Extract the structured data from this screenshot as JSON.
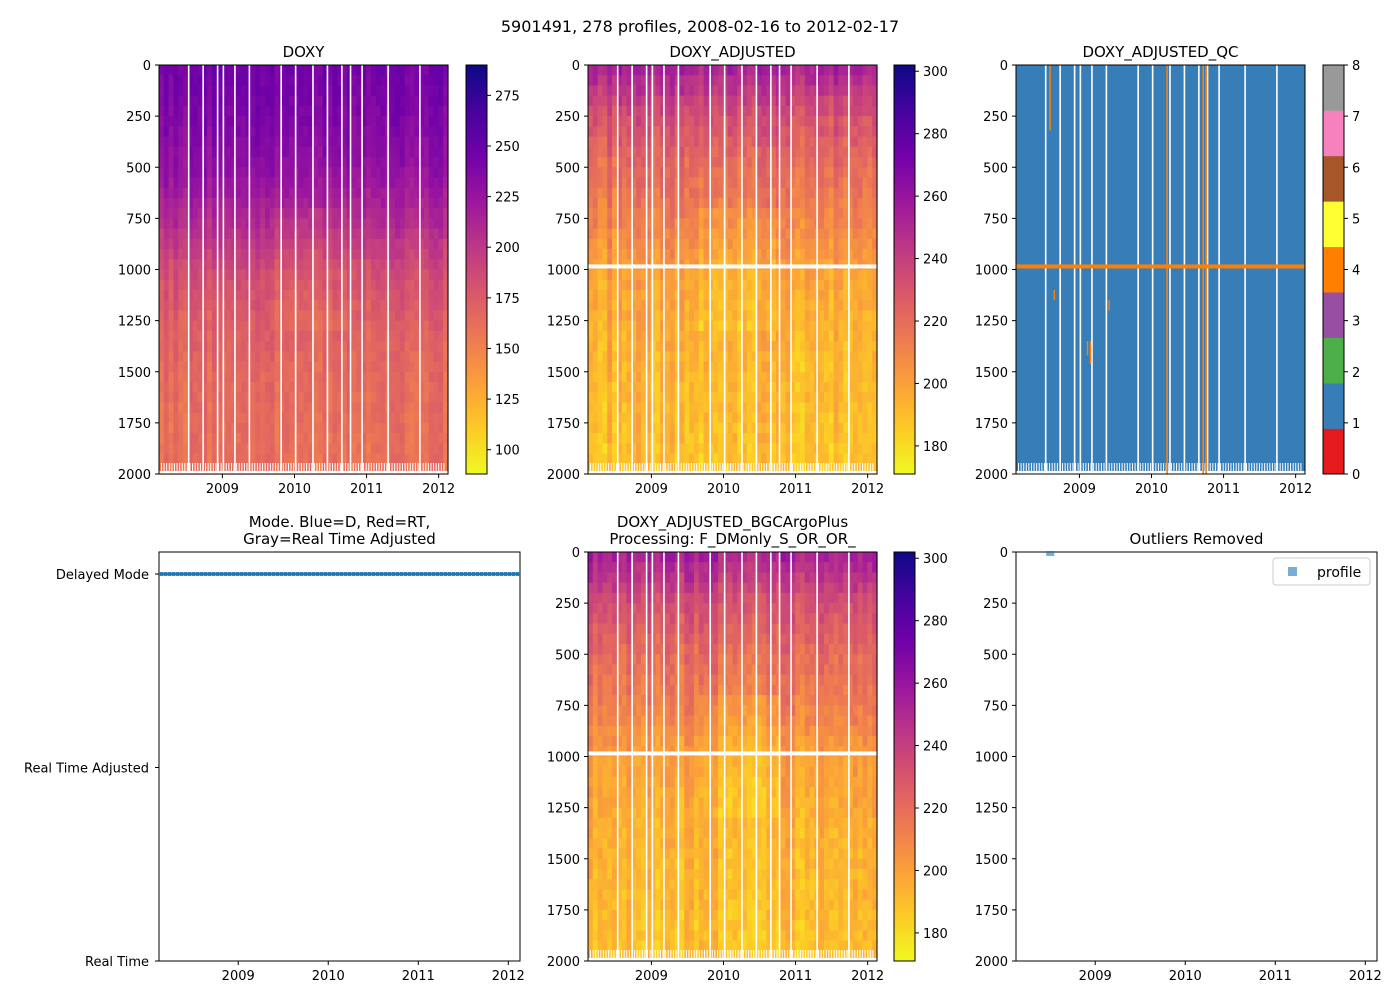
{
  "figure": {
    "suptitle": "5901491, 278 profiles, 2008-02-16 to 2012-02-17"
  },
  "colors": {
    "plasma_r": [
      "#f0f921",
      "#fdca26",
      "#fb9f3a",
      "#ed7953",
      "#d8576b",
      "#bd3786",
      "#9c179e",
      "#7201a8",
      "#46039f",
      "#0d0887"
    ],
    "qc": [
      "#e41a1c",
      "#377eb8",
      "#4daf4a",
      "#984ea3",
      "#ff7f00",
      "#ffff33",
      "#a65628",
      "#f781bf",
      "#999999"
    ],
    "mode_line": "#1f77b4",
    "outlier_marker": "#1f77b4"
  },
  "chart_data": [
    {
      "id": "doxy",
      "type": "heatmap",
      "title": "DOXY",
      "x_ticks": [
        "2009",
        "2010",
        "2011",
        "2012"
      ],
      "x_range": [
        2008.12,
        2012.13
      ],
      "y_ticks": [
        "0",
        "250",
        "500",
        "750",
        "1000",
        "1250",
        "1500",
        "1750",
        "2000"
      ],
      "ylim": [
        2000,
        0
      ],
      "colorbar": {
        "range": [
          88,
          290
        ],
        "ticks": [
          "100",
          "125",
          "150",
          "175",
          "200",
          "225",
          "250",
          "275"
        ],
        "tick_values": [
          100,
          125,
          150,
          175,
          200,
          225,
          250,
          275
        ],
        "cmap": "plasma_r"
      },
      "depth_profile": [
        {
          "depth": 0,
          "value": 245
        },
        {
          "depth": 250,
          "value": 238
        },
        {
          "depth": 500,
          "value": 228
        },
        {
          "depth": 750,
          "value": 210
        },
        {
          "depth": 1000,
          "value": 185
        },
        {
          "depth": 1250,
          "value": 172
        },
        {
          "depth": 1500,
          "value": 165
        },
        {
          "depth": 1750,
          "value": 162
        },
        {
          "depth": 2000,
          "value": 160
        }
      ],
      "qc_band": null
    },
    {
      "id": "doxy_adjusted",
      "type": "heatmap",
      "title": "DOXY_ADJUSTED",
      "x_ticks": [
        "2009",
        "2010",
        "2011",
        "2012"
      ],
      "x_range": [
        2008.12,
        2012.13
      ],
      "y_ticks": [
        "0",
        "250",
        "500",
        "750",
        "1000",
        "1250",
        "1500",
        "1750",
        "2000"
      ],
      "ylim": [
        2000,
        0
      ],
      "colorbar": {
        "range": [
          171,
          302
        ],
        "ticks": [
          "180",
          "200",
          "220",
          "240",
          "260",
          "280",
          "300"
        ],
        "tick_values": [
          180,
          200,
          220,
          240,
          260,
          280,
          300
        ],
        "cmap": "plasma_r"
      },
      "depth_profile": [
        {
          "depth": 0,
          "value": 255
        },
        {
          "depth": 250,
          "value": 232
        },
        {
          "depth": 500,
          "value": 220
        },
        {
          "depth": 750,
          "value": 212
        },
        {
          "depth": 1000,
          "value": 200
        },
        {
          "depth": 1250,
          "value": 195
        },
        {
          "depth": 1500,
          "value": 192
        },
        {
          "depth": 1750,
          "value": 190
        },
        {
          "depth": 2000,
          "value": 188
        }
      ],
      "gap_depth": 985
    },
    {
      "id": "doxy_adjusted_qc",
      "type": "heatmap",
      "title": "DOXY_ADJUSTED_QC",
      "x_ticks": [
        "2009",
        "2010",
        "2011",
        "2012"
      ],
      "x_range": [
        2008.12,
        2012.13
      ],
      "y_ticks": [
        "0",
        "250",
        "500",
        "750",
        "1000",
        "1250",
        "1500",
        "1750",
        "2000"
      ],
      "ylim": [
        2000,
        0
      ],
      "colorbar": {
        "range": [
          0,
          8
        ],
        "ticks": [
          "0",
          "1",
          "2",
          "3",
          "4",
          "5",
          "6",
          "7",
          "8"
        ],
        "tick_values": [
          0,
          1,
          2,
          3,
          4,
          5,
          6,
          7,
          8
        ],
        "cmap": "qc"
      },
      "dominant_flag": 1,
      "flag_band": {
        "depth": 985,
        "flag": 4
      }
    },
    {
      "id": "mode",
      "type": "line",
      "title": "Mode. Blue=D, Red=RT,\nGray=Real Time Adjusted",
      "x_ticks": [
        "2009",
        "2010",
        "2011",
        "2012"
      ],
      "x_range": [
        2008.12,
        2012.13
      ],
      "y_categories": [
        "Delayed Mode",
        "Real Time Adjusted",
        "Real Time"
      ],
      "series": [
        {
          "name": "mode",
          "x_range": [
            2008.13,
            2012.13
          ],
          "y_category": "Delayed Mode"
        }
      ]
    },
    {
      "id": "bgc_argo_plus",
      "type": "heatmap",
      "title": "DOXY_ADJUSTED_BGCArgoPlus\nProcessing: F_DMonly_S_OR_OR_",
      "x_ticks": [
        "2009",
        "2010",
        "2011",
        "2012"
      ],
      "x_range": [
        2008.12,
        2012.13
      ],
      "y_ticks": [
        "0",
        "250",
        "500",
        "750",
        "1000",
        "1250",
        "1500",
        "1750",
        "2000"
      ],
      "ylim": [
        2000,
        0
      ],
      "colorbar": {
        "range": [
          171,
          302
        ],
        "ticks": [
          "180",
          "200",
          "220",
          "240",
          "260",
          "280",
          "300"
        ],
        "tick_values": [
          180,
          200,
          220,
          240,
          260,
          280,
          300
        ],
        "cmap": "plasma_r"
      },
      "depth_profile": [
        {
          "depth": 0,
          "value": 255
        },
        {
          "depth": 250,
          "value": 232
        },
        {
          "depth": 500,
          "value": 220
        },
        {
          "depth": 750,
          "value": 212
        },
        {
          "depth": 1000,
          "value": 200
        },
        {
          "depth": 1250,
          "value": 195
        },
        {
          "depth": 1500,
          "value": 192
        },
        {
          "depth": 1750,
          "value": 190
        },
        {
          "depth": 2000,
          "value": 188
        }
      ],
      "gap_depth": 985
    },
    {
      "id": "outliers",
      "type": "scatter",
      "title": "Outliers Removed",
      "x_ticks": [
        "2009",
        "2010",
        "2011",
        "2012"
      ],
      "x_range": [
        2008.12,
        2012.13
      ],
      "y_ticks": [
        "0",
        "250",
        "500",
        "750",
        "1000",
        "1250",
        "1500",
        "1750",
        "2000"
      ],
      "ylim": [
        2000,
        0
      ],
      "legend": {
        "label": "profile",
        "placement": "top-right"
      },
      "points": [
        {
          "x": 2008.5,
          "y": 0
        }
      ]
    }
  ]
}
